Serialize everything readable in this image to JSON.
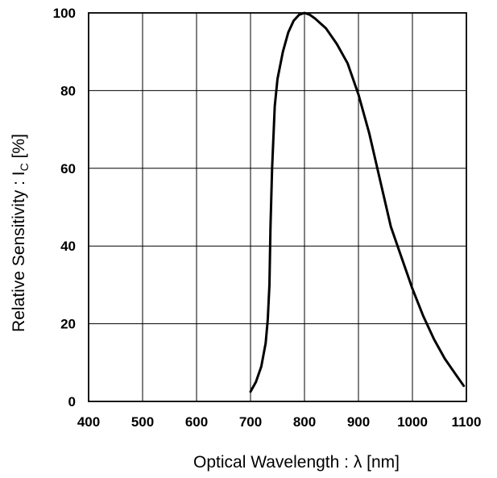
{
  "chart_data": {
    "type": "line",
    "xlabel": "Optical Wavelength : λ [nm]",
    "ylabel_main": "Relative Sensitivity : I",
    "ylabel_sub": "C",
    "ylabel_unit": " [%]",
    "xlim": [
      400,
      1100
    ],
    "ylim": [
      0,
      100
    ],
    "xticks": [
      400,
      500,
      600,
      700,
      800,
      900,
      1000,
      1100
    ],
    "yticks": [
      0,
      20,
      40,
      60,
      80,
      100
    ],
    "grid": true,
    "series": [
      {
        "x": [
          700,
          710,
          720,
          728,
          732,
          735,
          737,
          740,
          745,
          750,
          760,
          770,
          780,
          790,
          800,
          810,
          820,
          840,
          860,
          880,
          900,
          920,
          940,
          960,
          980,
          1000,
          1020,
          1040,
          1060,
          1080,
          1095
        ],
        "y": [
          2.5,
          5,
          9,
          15,
          21,
          30,
          45,
          60,
          76,
          83,
          90,
          95,
          98,
          99.5,
          100,
          99.5,
          98.5,
          96,
          92,
          87,
          79,
          69,
          57,
          45,
          37,
          29,
          22,
          16,
          11,
          7,
          4
        ]
      }
    ],
    "line_color": "#000000"
  }
}
